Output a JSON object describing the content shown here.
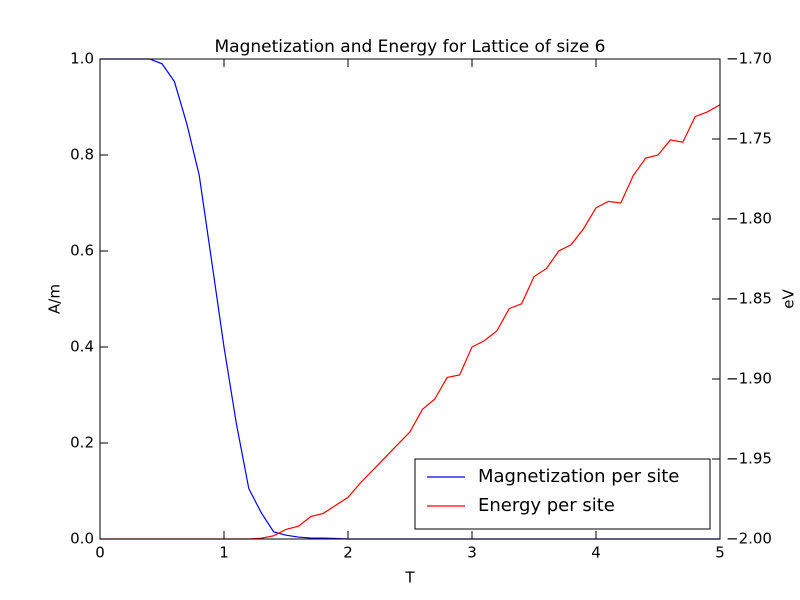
{
  "chart_data": {
    "type": "line",
    "title": "Magnetization and Energy for Lattice of size 6",
    "x_label": "T",
    "y_label": "A/m",
    "y2_label": "eV",
    "y_label_color": "#0000ff",
    "y2_label_color": "#ff0000",
    "x": [
      0.0,
      0.1,
      0.2,
      0.3,
      0.4,
      0.5,
      0.6,
      0.7,
      0.8,
      0.9,
      1.0,
      1.1,
      1.2,
      1.3,
      1.4,
      1.5,
      1.6,
      1.7,
      1.8,
      1.9,
      2.0,
      2.1,
      2.2,
      2.3,
      2.4,
      2.5,
      2.6,
      2.7,
      2.8,
      2.9,
      3.0,
      3.1,
      3.2,
      3.3,
      3.4,
      3.5,
      3.6,
      3.7,
      3.8,
      3.9,
      4.0,
      4.1,
      4.2,
      4.3,
      4.4,
      4.5,
      4.6,
      4.7,
      4.8,
      4.9,
      5.0
    ],
    "series": [
      {
        "name": "Magnetization per site",
        "color": "#0000ff",
        "values": [
          1.0,
          1.0,
          1.0,
          1.0,
          1.0,
          0.99,
          0.953,
          0.865,
          0.758,
          0.58,
          0.4,
          0.24,
          0.105,
          0.055,
          0.015,
          0.008,
          0.004,
          0.002,
          0.002,
          0.001,
          0,
          0,
          0,
          0,
          0,
          0,
          0,
          0,
          0,
          0,
          0,
          0,
          0,
          0,
          0,
          0,
          0,
          0,
          0,
          0,
          0,
          0,
          0,
          0,
          0,
          0,
          0,
          0,
          0,
          0,
          0
        ]
      },
      {
        "name": "Energy per site",
        "color": "#ff0000",
        "axis": "y2",
        "values": [
          -2.0,
          -2.0,
          -2.0,
          -2.0,
          -2.0,
          -2.0,
          -2.0,
          -2.0,
          -2.0,
          -2.0,
          -2.0,
          -2.0,
          -2.0,
          -1.9995,
          -1.998,
          -1.994,
          -1.992,
          -1.986,
          -1.984,
          -1.979,
          -1.974,
          -1.965,
          -1.957,
          -1.949,
          -1.941,
          -1.933,
          -1.919,
          -1.9125,
          -1.899,
          -1.8975,
          -1.88,
          -1.876,
          -1.87,
          -1.856,
          -1.853,
          -1.836,
          -1.831,
          -1.82,
          -1.816,
          -1.806,
          -1.793,
          -1.789,
          -1.79,
          -1.773,
          -1.762,
          -1.76,
          -1.7506,
          -1.752,
          -1.736,
          -1.733,
          -1.7286
        ]
      }
    ],
    "xlim": [
      0,
      5
    ],
    "xticks": [
      0,
      1,
      2,
      3,
      4,
      5
    ],
    "ylim": [
      0,
      1
    ],
    "yticks": [
      {
        "value": 0,
        "label": "0.0"
      },
      0.2,
      0.4,
      0.6,
      0.8,
      {
        "value": 1,
        "label": "1.0"
      }
    ],
    "y2lim": [
      -2.0,
      -1.7
    ],
    "y2ticks": [
      {
        "value": -2.0,
        "label": "−2.00"
      },
      {
        "value": -1.95,
        "label": "−1.95"
      },
      {
        "value": -1.9,
        "label": "−1.90"
      },
      {
        "value": -1.85,
        "label": "−1.85"
      },
      {
        "value": -1.8,
        "label": "−1.80"
      },
      {
        "value": -1.75,
        "label": "−1.75"
      },
      {
        "value": -1.7,
        "label": "−1.70"
      }
    ],
    "legend": "lower right"
  }
}
